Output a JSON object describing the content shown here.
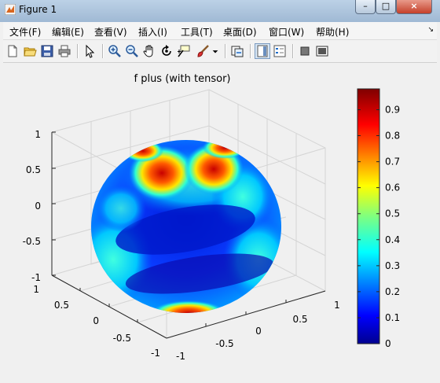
{
  "window": {
    "title": "Figure 1",
    "controls": {
      "minimize": "–",
      "maximize": "□",
      "close": "×"
    }
  },
  "menu": {
    "items": [
      "文件(F)",
      "编辑(E)",
      "查看(V)",
      "插入(I)",
      "工具(T)",
      "桌面(D)",
      "窗口(W)",
      "帮助(H)"
    ],
    "overflow_arrow": "↘"
  },
  "toolbar": {
    "buttons": [
      "new-figure-icon",
      "open-file-icon",
      "save-icon",
      "print-icon",
      "edit-plot-arrow-icon",
      "zoom-in-icon",
      "zoom-out-icon",
      "pan-hand-icon",
      "rotate-3d-icon",
      "data-cursor-icon",
      "brush-icon",
      "brush-dropdown-icon",
      "link-plot-icon",
      "colorbar-icon",
      "legend-icon",
      "hide-plot-tools-icon",
      "show-plot-tools-icon"
    ]
  },
  "plot": {
    "title": "f plus (with tensor)",
    "z_ticks": [
      "1",
      "0.5",
      "0",
      "-0.5",
      "-1"
    ],
    "x_ticks": [
      "1",
      "0.5",
      "0",
      "-0.5",
      "-1"
    ],
    "y_ticks": [
      "1",
      "0.5",
      "0",
      "-0.5",
      "-1"
    ],
    "colorbar": {
      "colormap": "jet",
      "range": [
        0,
        0.98
      ],
      "ticks": [
        "0.9",
        "0.8",
        "0.7",
        "0.6",
        "0.5",
        "0.4",
        "0.3",
        "0.2",
        "0.1",
        "0"
      ]
    }
  }
}
